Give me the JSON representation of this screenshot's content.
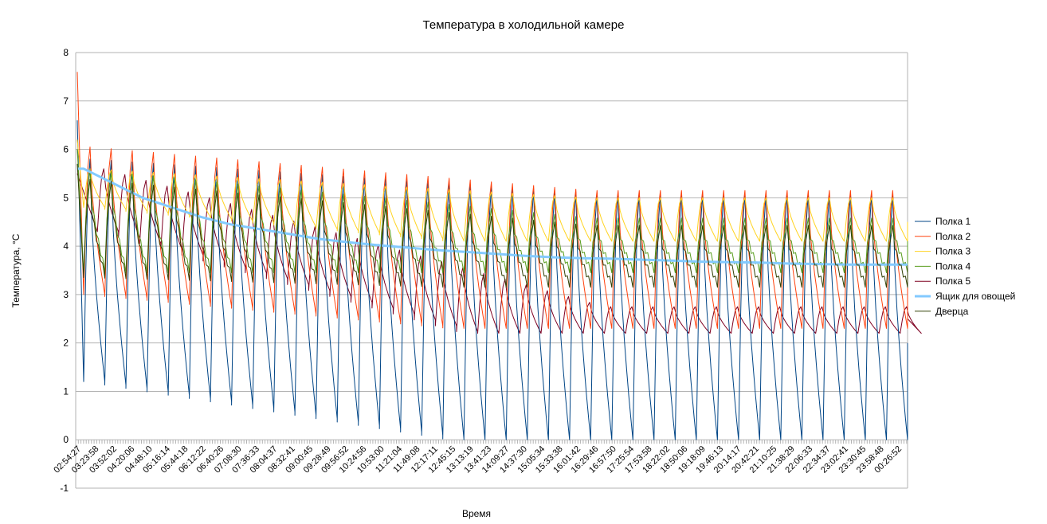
{
  "chart_data": {
    "type": "line",
    "title": "Температура в холодильной камере",
    "xlabel": "Время",
    "ylabel": "Температура, °C",
    "ylim": [
      -1,
      8
    ],
    "yticks": [
      "-1",
      "0",
      "1",
      "2",
      "3",
      "4",
      "5",
      "6",
      "7",
      "8"
    ],
    "grid": "horizontal",
    "legend_position": "right",
    "x_tick_labels": [
      "02:54:27",
      "03:23:58",
      "03:52:02",
      "04:20:06",
      "04:48:10",
      "05:16:14",
      "05:44:18",
      "06:12:22",
      "06:40:26",
      "07:08:30",
      "07:36:33",
      "08:04:37",
      "08:32:41",
      "09:00:45",
      "09:28:49",
      "09:56:52",
      "10:24:56",
      "10:53:00",
      "11:21:04",
      "11:49:08",
      "12:17:11",
      "12:45:15",
      "13:13:19",
      "13:41:23",
      "14:09:27",
      "14:37:30",
      "15:05:34",
      "15:33:38",
      "16:01:42",
      "16:29:46",
      "16:57:50",
      "17:25:54",
      "17:53:58",
      "18:22:02",
      "18:50:06",
      "19:18:09",
      "19:46:13",
      "20:14:17",
      "20:42:21",
      "21:10:25",
      "21:38:29",
      "22:06:33",
      "22:34:37",
      "23:02:41",
      "23:30:45",
      "23:58:48",
      "00:26:52"
    ],
    "cycles": 39,
    "series": [
      {
        "name": "Полка 1",
        "color": "#004586",
        "width": 1,
        "start": 6.6,
        "cycle_high_first": 5.8,
        "cycle_high_last": 5.1,
        "cycle_low_first": 1.2,
        "cycle_low_last": 0.0,
        "end": 2.0
      },
      {
        "name": "Полка 2",
        "color": "#ff420e",
        "width": 1,
        "start": 7.6,
        "cycle_high_first": 6.05,
        "cycle_high_last": 5.15,
        "cycle_low_first": 3.0,
        "cycle_low_last": 2.3,
        "end": 4.0
      },
      {
        "name": "Полка 3",
        "color": "#ffd320",
        "width": 1,
        "start": 6.2,
        "cycle_high_first": 5.6,
        "cycle_high_last": 5.0,
        "cycle_low_first": 4.8,
        "cycle_low_last": 4.1,
        "end": 4.5
      },
      {
        "name": "Полка 4",
        "color": "#579d1c",
        "width": 1,
        "start": 6.0,
        "cycle_high_first": 5.5,
        "cycle_high_last": 4.5,
        "cycle_low_first": 3.5,
        "cycle_low_last": 3.5,
        "end": 4.1
      },
      {
        "name": "Полка 5",
        "color": "#7e0021",
        "width": 1,
        "start": 5.5,
        "cycle_high_first": 5.6,
        "cycle_high_last": 2.75,
        "cycle_low_first": 4.3,
        "cycle_low_last": 2.2,
        "end": 2.5
      },
      {
        "name": "Ящик для овощей",
        "color": "#83caff",
        "width": 3,
        "start": 5.6,
        "values": [
          5.6,
          5.3,
          5.0,
          4.8,
          4.6,
          4.45,
          4.35,
          4.25,
          4.15,
          4.08,
          4.02,
          3.97,
          3.92,
          3.88,
          3.84,
          3.8,
          3.77,
          3.75,
          3.74,
          3.72,
          3.7,
          3.68,
          3.67,
          3.66,
          3.64,
          3.63,
          3.62,
          3.62,
          3.62
        ]
      },
      {
        "name": "Дверца",
        "color": "#314004",
        "width": 1,
        "start": 5.7,
        "cycle_high_first": 5.3,
        "cycle_high_last": 4.35,
        "cycle_low_first": 3.4,
        "cycle_low_last": 3.2,
        "end": 3.6
      }
    ]
  }
}
